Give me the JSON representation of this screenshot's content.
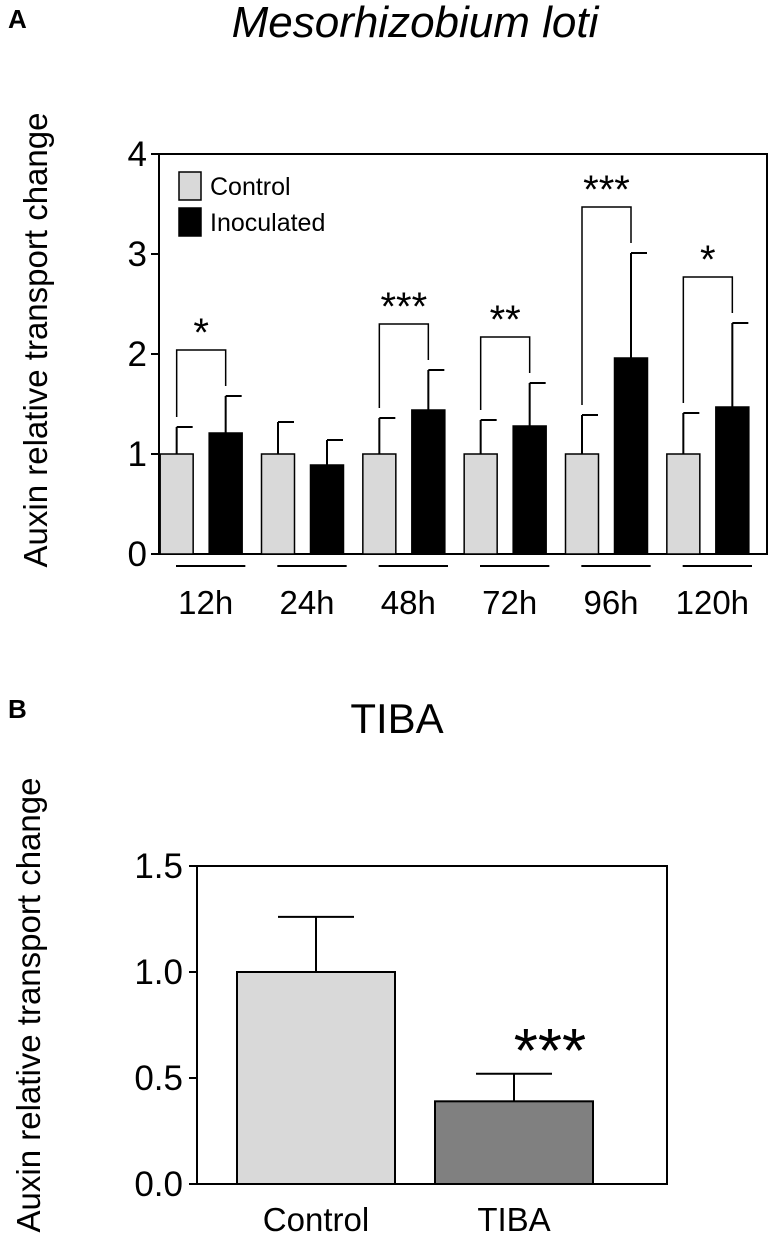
{
  "panels": {
    "a": {
      "letter": "A"
    },
    "b": {
      "letter": "B"
    }
  },
  "chart_data": [
    {
      "type": "bar",
      "title": "Mesorhizobium loti",
      "xlabel": "",
      "ylabel": "Auxin relative transport change",
      "ylim": [
        0,
        4
      ],
      "yticks": [
        "0",
        "1",
        "2",
        "3",
        "4"
      ],
      "categories": [
        "12h",
        "24h",
        "48h",
        "72h",
        "96h",
        "120h"
      ],
      "series": [
        {
          "name": "Control",
          "color": "#d9d9d9",
          "values": [
            1,
            1,
            1,
            1,
            1,
            1
          ],
          "errors": [
            0.27,
            0.32,
            0.36,
            0.34,
            0.39,
            0.41
          ]
        },
        {
          "name": "Inoculated",
          "color": "#000000",
          "values": [
            1.21,
            0.89,
            1.44,
            1.28,
            1.96,
            1.47
          ],
          "errors": [
            0.37,
            0.25,
            0.4,
            0.43,
            1.05,
            0.84
          ]
        }
      ],
      "significance": [
        "*",
        "",
        "***",
        "**",
        "***",
        "*"
      ],
      "legend": {
        "position": "top-left"
      }
    },
    {
      "type": "bar",
      "title": "TIBA",
      "xlabel": "",
      "ylabel": "Auxin relative transport change",
      "ylim": [
        0,
        1.5
      ],
      "yticks": [
        "0.0",
        "0.5",
        "1.0",
        "1.5"
      ],
      "categories": [
        "Control",
        "TIBA"
      ],
      "values": [
        1.0,
        0.39
      ],
      "errors": [
        0.26,
        0.13
      ],
      "colors": [
        "#d9d9d9",
        "#808080"
      ],
      "significance": [
        "",
        "***"
      ]
    }
  ]
}
